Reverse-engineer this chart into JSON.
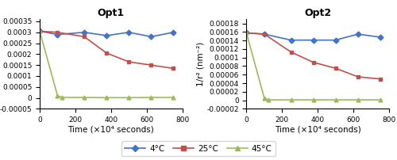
{
  "opt1": {
    "title": "Opt1",
    "4C": {
      "x": [
        0,
        100,
        250,
        375,
        500,
        625,
        750
      ],
      "y": [
        0.000305,
        0.00029,
        0.0003,
        0.000285,
        0.0003,
        0.00028,
        0.0003
      ]
    },
    "25C": {
      "x": [
        0,
        100,
        250,
        375,
        500,
        625,
        750
      ],
      "y": [
        0.000305,
        0.0003,
        0.00028,
        0.000205,
        0.000165,
        0.00015,
        0.000135
      ]
    },
    "45C": {
      "x": [
        0,
        100,
        125,
        250,
        375,
        500,
        625,
        750
      ],
      "y": [
        0.000305,
        1e-05,
        2e-06,
        2e-06,
        1e-06,
        1e-06,
        2e-06,
        2e-06
      ]
    },
    "ylim": [
      -5e-05,
      0.00036
    ],
    "yticks": [
      -5e-05,
      0.0,
      5e-05,
      0.0001,
      0.00015,
      0.0002,
      0.00025,
      0.0003,
      0.00035
    ]
  },
  "opt2": {
    "title": "Opt2",
    "4C": {
      "x": [
        0,
        100,
        250,
        375,
        500,
        625,
        750
      ],
      "y": [
        0.000158,
        0.000155,
        0.000141,
        0.000141,
        0.000141,
        0.000155,
        0.000148
      ]
    },
    "25C": {
      "x": [
        0,
        100,
        250,
        375,
        500,
        625,
        750
      ],
      "y": [
        0.000158,
        0.000155,
        0.000113,
        8.9e-05,
        7.5e-05,
        5.5e-05,
        5e-05
      ]
    },
    "45C": {
      "x": [
        0,
        100,
        125,
        250,
        375,
        500,
        625,
        750
      ],
      "y": [
        0.000158,
        5e-06,
        1e-06,
        1e-06,
        1e-06,
        1e-06,
        1e-06,
        1e-06
      ]
    },
    "ylim": [
      -2e-05,
      0.00019
    ],
    "yticks": [
      -2e-05,
      0.0,
      2e-05,
      4e-05,
      6e-05,
      8e-05,
      0.0001,
      0.00012,
      0.00014,
      0.00016,
      0.00018
    ]
  },
  "color_4C": "#4472C4",
  "color_25C": "#C0504D",
  "color_45C": "#9BBB59",
  "xlabel": "Time (×10⁴ seconds)",
  "ylabel": "1/r² (nm⁻²)",
  "xlim": [
    0,
    800
  ],
  "xticks": [
    0,
    200,
    400,
    600,
    800
  ],
  "legend_labels": [
    "4°C",
    "25°C",
    "45°C"
  ]
}
